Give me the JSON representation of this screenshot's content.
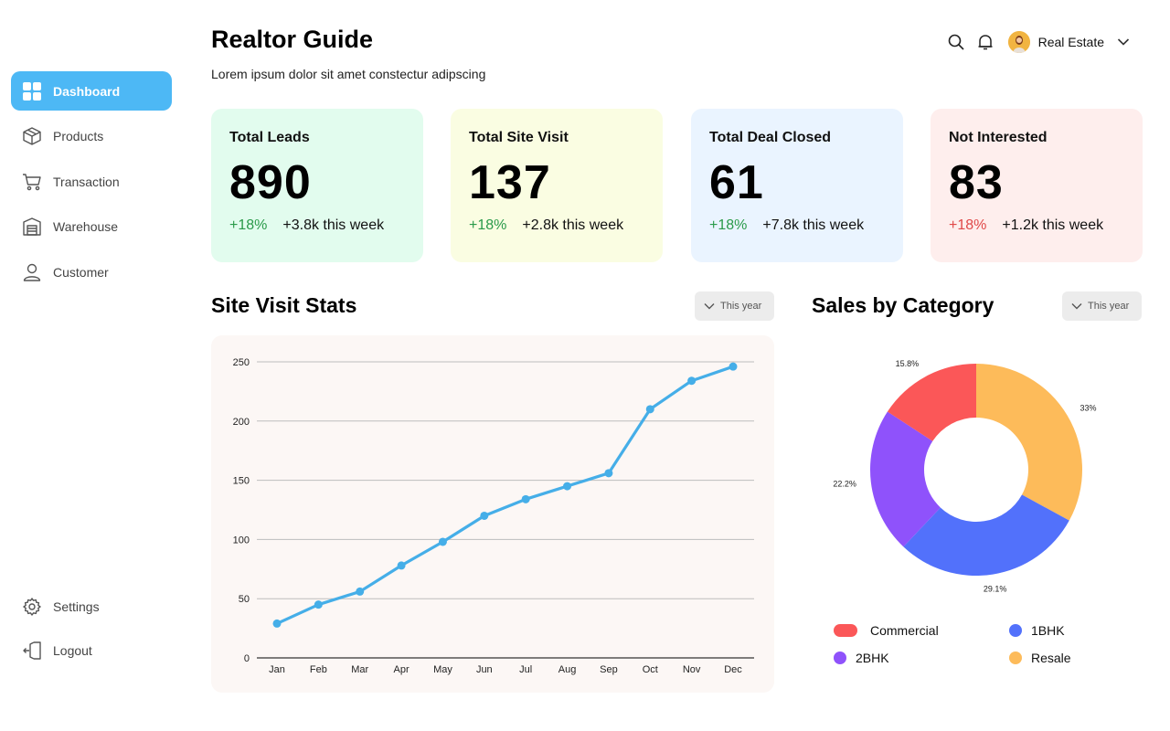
{
  "sidebar": {
    "items": [
      {
        "label": "Dashboard",
        "icon": "grid-icon",
        "active": true
      },
      {
        "label": "Products",
        "icon": "box-icon"
      },
      {
        "label": "Transaction",
        "icon": "cart-icon"
      },
      {
        "label": "Warehouse",
        "icon": "warehouse-icon"
      },
      {
        "label": "Customer",
        "icon": "user-icon"
      }
    ],
    "bottom": [
      {
        "label": "Settings",
        "icon": "gear-icon"
      },
      {
        "label": "Logout",
        "icon": "logout-icon"
      }
    ]
  },
  "header": {
    "title": "Realtor Guide",
    "subtitle": "Lorem ipsum dolor sit amet constectur adipscing",
    "profile_name": "Real Estate"
  },
  "stats": [
    {
      "title": "Total Leads",
      "value": "890",
      "pct": "+18%",
      "week": "+3.8k this week",
      "bg": "#e2fcee",
      "pct_color": "#2a9a4a"
    },
    {
      "title": "Total Site Visit",
      "value": "137",
      "pct": "+18%",
      "week": "+2.8k this week",
      "bg": "#fafde2",
      "pct_color": "#2a9a4a"
    },
    {
      "title": "Total Deal Closed",
      "value": "61",
      "pct": "+18%",
      "week": "+7.8k this week",
      "bg": "#eaf4ff",
      "pct_color": "#2a9a4a"
    },
    {
      "title": "Not Interested",
      "value": "83",
      "pct": "+18%",
      "week": "+1.2k this week",
      "bg": "#feeeed",
      "pct_color": "#e04848"
    }
  ],
  "site_visit": {
    "title": "Site Visit Stats",
    "dropdown": "This year"
  },
  "sales": {
    "title": "Sales by Category",
    "dropdown": "This year"
  },
  "chart_data": [
    {
      "type": "line",
      "x": [
        "Jan",
        "Feb",
        "Mar",
        "Apr",
        "May",
        "Jun",
        "Jul",
        "Aug",
        "Sep",
        "Oct",
        "Nov",
        "Dec"
      ],
      "series": [
        {
          "values": [
            29,
            45,
            56,
            78,
            98,
            120,
            134,
            145,
            156,
            210,
            234,
            246
          ],
          "color": "#45aee8"
        }
      ],
      "yticks": [
        0,
        50,
        100,
        150,
        200,
        250
      ],
      "ylim": [
        0,
        250
      ],
      "grid": true
    },
    {
      "type": "pie",
      "donut": true,
      "slices": [
        {
          "label": "Resale",
          "value": 33,
          "pct_label": "33%",
          "color": "#fdbb5a"
        },
        {
          "label": "1BHK",
          "value": 29.1,
          "pct_label": "29.1%",
          "color": "#5271fb"
        },
        {
          "label": "2BHK",
          "value": 22.2,
          "pct_label": "22.2%",
          "color": "#8f52fb"
        },
        {
          "label": "Commercial",
          "value": 15.8,
          "pct_label": "15.8%",
          "color": "#fb5758"
        }
      ],
      "legend": [
        "Commercial",
        "1BHK",
        "2BHK",
        "Resale"
      ]
    }
  ]
}
